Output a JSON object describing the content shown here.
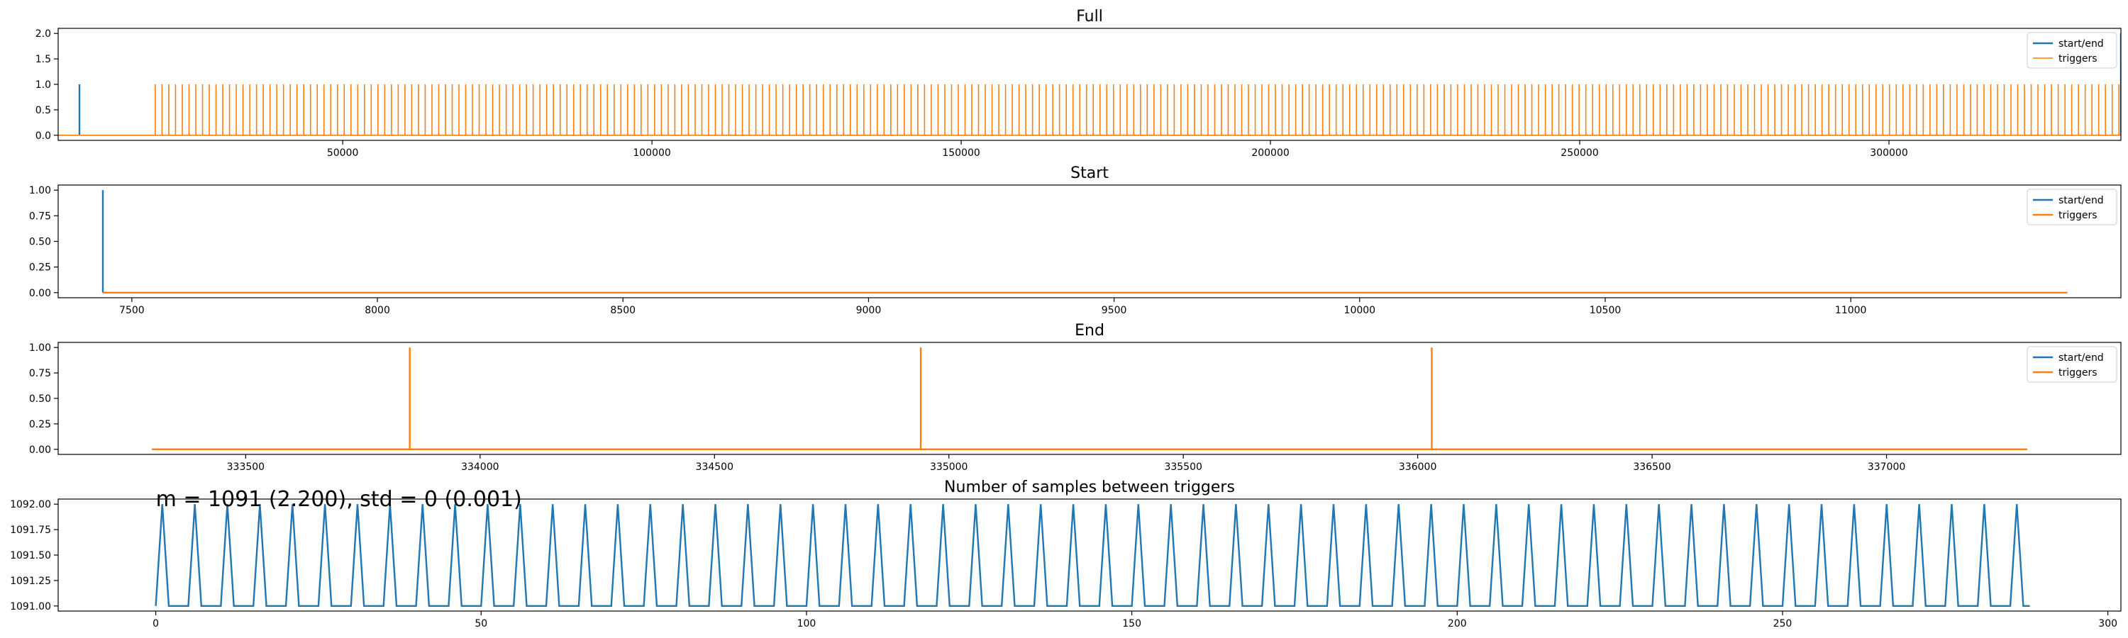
{
  "colors": {
    "start_end": "#1f77b4",
    "triggers": "#ff7f0e",
    "frame": "#000000",
    "legend_border": "#cccccc"
  },
  "chart_data": [
    {
      "id": "full",
      "type": "line",
      "title": "Full",
      "xlim": [
        4000,
        337500
      ],
      "ylim": [
        -0.1,
        2.1
      ],
      "xticks": [
        50000,
        100000,
        150000,
        200000,
        250000,
        300000
      ],
      "yticks": [
        "0.0",
        "0.5",
        "1.0",
        "1.5",
        "2.0"
      ],
      "legend": {
        "position": "top-right",
        "entries": [
          "start/end",
          "triggers"
        ]
      },
      "series": [
        {
          "name": "start/end",
          "kind": "spikes",
          "x": [
            7441,
            337500
          ],
          "heights": [
            1,
            2
          ]
        },
        {
          "name": "triggers",
          "kind": "spike-train",
          "x_start": 19700,
          "x_end": 337400,
          "x_step": 1091,
          "height": 1
        }
      ]
    },
    {
      "id": "start",
      "type": "line",
      "title": "Start",
      "xlim": [
        7350,
        11550
      ],
      "ylim": [
        -0.05,
        1.05
      ],
      "xticks": [
        7500,
        8000,
        8500,
        9000,
        9500,
        10000,
        10500,
        11000
      ],
      "yticks": [
        "0.00",
        "0.25",
        "0.50",
        "0.75",
        "1.00"
      ],
      "legend": {
        "position": "top-right",
        "entries": [
          "start/end",
          "triggers"
        ]
      },
      "series": [
        {
          "name": "start/end",
          "kind": "spikes",
          "x": [
            7441
          ],
          "heights": [
            1
          ]
        },
        {
          "name": "triggers",
          "kind": "flat",
          "x_start": 7441,
          "x_end": 11441,
          "value": 0
        }
      ]
    },
    {
      "id": "end",
      "type": "line",
      "title": "End",
      "xlim": [
        333100,
        337500
      ],
      "ylim": [
        -0.05,
        1.05
      ],
      "xticks": [
        333500,
        334000,
        334500,
        335000,
        335500,
        336000,
        336500,
        337000
      ],
      "yticks": [
        "0.00",
        "0.25",
        "0.50",
        "0.75",
        "1.00"
      ],
      "legend": {
        "position": "top-right",
        "entries": [
          "start/end",
          "triggers"
        ]
      },
      "series": [
        {
          "name": "triggers",
          "kind": "spikes-on-flat",
          "x_start": 333300,
          "x_end": 337300,
          "x": [
            333850,
            334940,
            336030
          ],
          "heights": [
            1,
            1,
            1
          ]
        }
      ]
    },
    {
      "id": "intervals",
      "type": "line",
      "title": "Number of samples between triggers",
      "xlim": [
        -15,
        302
      ],
      "ylim": [
        1090.95,
        1092.05
      ],
      "xticks": [
        0,
        50,
        100,
        150,
        200,
        250,
        300
      ],
      "yticks": [
        "1091.00",
        "1091.25",
        "1091.50",
        "1091.75",
        "1092.00"
      ],
      "annotation": "m = 1091 (2.200), std = 0 (0.001)",
      "series": [
        {
          "name": "",
          "kind": "sawtooth",
          "x_end": 288,
          "peak_x_start": 1,
          "period": 5,
          "low": 1091,
          "high": 1092
        }
      ]
    }
  ]
}
